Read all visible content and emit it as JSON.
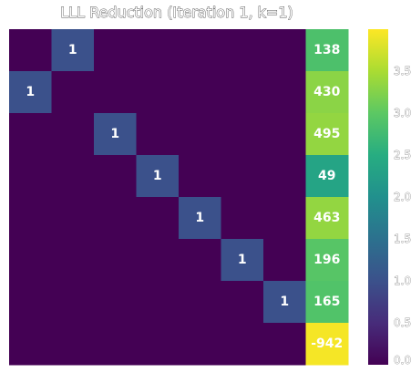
{
  "chart_data": {
    "type": "heatmap",
    "title": "LLL Reduction (Iteration 1, k=1)",
    "rows": 8,
    "cols": 8,
    "cells": [
      {
        "row": 0,
        "col": 1,
        "value": 1,
        "label": "1"
      },
      {
        "row": 0,
        "col": 7,
        "value": 2.86,
        "label": "138"
      },
      {
        "row": 1,
        "col": 0,
        "value": 1,
        "label": "1"
      },
      {
        "row": 1,
        "col": 7,
        "value": 3.3,
        "label": "430"
      },
      {
        "row": 2,
        "col": 2,
        "value": 1,
        "label": "1"
      },
      {
        "row": 2,
        "col": 7,
        "value": 3.35,
        "label": "495"
      },
      {
        "row": 3,
        "col": 3,
        "value": 1,
        "label": "1"
      },
      {
        "row": 3,
        "col": 7,
        "value": 2.35,
        "label": "49"
      },
      {
        "row": 4,
        "col": 4,
        "value": 1,
        "label": "1"
      },
      {
        "row": 4,
        "col": 7,
        "value": 3.35,
        "label": "463"
      },
      {
        "row": 5,
        "col": 5,
        "value": 1,
        "label": "1"
      },
      {
        "row": 5,
        "col": 7,
        "value": 2.95,
        "label": "196"
      },
      {
        "row": 6,
        "col": 6,
        "value": 1,
        "label": "1"
      },
      {
        "row": 6,
        "col": 7,
        "value": 2.9,
        "label": "165"
      },
      {
        "row": 7,
        "col": 7,
        "value": 3.95,
        "label": "-942"
      }
    ],
    "default_value": 0,
    "colormap": "viridis",
    "colorbar": {
      "range": [
        0,
        4
      ],
      "ticks": [
        0,
        0.5,
        1,
        1.5,
        2,
        2.5,
        3,
        3.5
      ],
      "tick_labels": [
        "0.0",
        "0.5",
        "1.0",
        "1.5",
        "2.0",
        "2.5",
        "3.0",
        "3.5"
      ]
    }
  }
}
